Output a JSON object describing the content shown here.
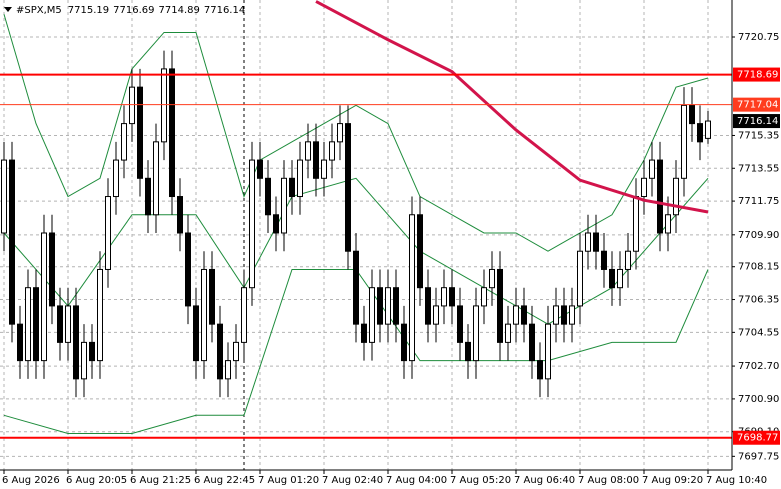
{
  "chart_data": {
    "type": "candlestick",
    "symbol": "#SPX,M5",
    "categories": [
      "6 Aug 2026",
      null,
      null,
      null,
      null,
      null,
      null,
      null,
      "6 Aug 20:05",
      null,
      null,
      null,
      null,
      null,
      null,
      null,
      "6 Aug 21:25",
      null,
      null,
      null,
      null,
      null,
      null,
      null,
      "6 Aug 22:45",
      null,
      null,
      null,
      null,
      null,
      null,
      null,
      "7 Aug 01:20",
      null,
      null,
      null,
      null,
      null,
      null,
      null,
      "7 Aug 02:40",
      null,
      null,
      null,
      null,
      null,
      null,
      null,
      "7 Aug 04:00",
      null,
      null,
      null,
      null,
      null,
      null,
      null,
      "7 Aug 05:20",
      null,
      null,
      null,
      null,
      null,
      null,
      null,
      "7 Aug 06:40",
      null,
      null,
      null,
      null,
      null,
      null,
      null,
      "7 Aug 08:00",
      null,
      null,
      null,
      null,
      null,
      null,
      null,
      "7 Aug 09:20",
      null,
      null,
      null,
      null,
      null,
      null,
      null,
      "7 Aug 10:40"
    ],
    "open": [
      7710,
      7714,
      7705,
      7703,
      7707,
      7703,
      7710,
      7706,
      7704,
      7706,
      7702,
      7704,
      7703,
      7708,
      7712,
      7714,
      7716,
      7718,
      7713,
      7711,
      7715,
      7719,
      7712,
      7710,
      7706,
      7703,
      7708,
      7705,
      7702,
      7703,
      7704,
      7707,
      7714,
      7713,
      7711,
      7710,
      7713,
      7712,
      7714,
      7715,
      7713,
      7714,
      7715,
      7716,
      7709,
      7705,
      7704,
      7707,
      7705,
      7707,
      7705,
      7703,
      7711,
      7707,
      7705,
      7706,
      7707,
      7706,
      7704,
      7703,
      7706,
      7707,
      7708,
      7704,
      7705,
      7706,
      7705,
      7703,
      7702,
      7705,
      7706,
      7705,
      7706,
      7709,
      7710,
      7709,
      7708,
      7707,
      7708,
      7709,
      7712,
      7713,
      7714,
      7710,
      7711,
      7713,
      7717,
      7716,
      7715.19
    ],
    "high": [
      7715,
      7715,
      7706,
      7708,
      7708,
      7711,
      7711,
      7707,
      7707,
      7707,
      7705,
      7705,
      7709,
      7713,
      7715,
      7717,
      7719,
      7719,
      7714,
      7716,
      7720,
      7720,
      7713,
      7711,
      7707,
      7709,
      7709,
      7706,
      7704,
      7705,
      7708,
      7715,
      7715,
      7714,
      7712,
      7714,
      7714,
      7715,
      7716,
      7716,
      7715,
      7716,
      7717,
      7717,
      7710,
      7706,
      7708,
      7708,
      7708,
      7708,
      7706,
      7712,
      7712,
      7708,
      7707,
      7708,
      7708,
      7707,
      7705,
      7707,
      7708,
      7709,
      7709,
      7706,
      7707,
      7707,
      7706,
      7704,
      7706,
      7707,
      7707,
      7707,
      7710,
      7711,
      7711,
      7710,
      7709,
      7709,
      7710,
      7713,
      7714,
      7715,
      7715,
      7712,
      7714,
      7718,
      7718,
      7717,
      7716.69
    ],
    "low": [
      7709,
      7704,
      7702,
      7702,
      7702,
      7702,
      7705,
      7703,
      7703,
      7701,
      7701,
      7702,
      7702,
      7707,
      7711,
      7713,
      7715,
      7712,
      7710,
      7710,
      7714,
      7711,
      7709,
      7705,
      7702,
      7702,
      7704,
      7701,
      7701,
      7702,
      7703,
      7706,
      7712,
      7710,
      7709,
      7709,
      7711,
      7711,
      7713,
      7712,
      7712,
      7713,
      7714,
      7708,
      7704,
      7703,
      7703,
      7704,
      7704,
      7704,
      7702,
      7702,
      7706,
      7704,
      7704,
      7705,
      7705,
      7703,
      7702,
      7702,
      7705,
      7706,
      7703,
      7703,
      7704,
      7704,
      7702,
      7701,
      7701,
      7704,
      7704,
      7704,
      7705,
      7708,
      7708,
      7707,
      7706,
      7706,
      7707,
      7708,
      7711,
      7712,
      7709,
      7709,
      7710,
      7712,
      7715,
      7714,
      7714.89
    ],
    "close": [
      7714,
      7705,
      7703,
      7707,
      7703,
      7710,
      7706,
      7704,
      7706,
      7702,
      7704,
      7703,
      7708,
      7712,
      7714,
      7716,
      7718,
      7713,
      7711,
      7715,
      7719,
      7712,
      7710,
      7706,
      7703,
      7708,
      7705,
      7702,
      7703,
      7704,
      7707,
      7714,
      7713,
      7711,
      7710,
      7713,
      7712,
      7714,
      7715,
      7713,
      7714,
      7715,
      7716,
      7709,
      7705,
      7704,
      7707,
      7705,
      7707,
      7705,
      7703,
      7711,
      7707,
      7705,
      7706,
      7707,
      7706,
      7704,
      7703,
      7706,
      7707,
      7708,
      7704,
      7705,
      7706,
      7705,
      7703,
      7702,
      7705,
      7706,
      7705,
      7706,
      7709,
      7710,
      7709,
      7708,
      7707,
      7708,
      7709,
      7712,
      7713,
      7714,
      7710,
      7711,
      7713,
      7717,
      7716,
      7715,
      7716.14
    ],
    "ma": {
      "color": "#d2144b",
      "x": [
        39,
        48,
        56,
        64,
        72,
        80,
        88
      ],
      "values": [
        7722.7,
        7720.6,
        7718.85,
        7715.65,
        7712.9,
        7711.8,
        7711.15
      ]
    },
    "bands": [
      {
        "color": "#1e8c3c",
        "x": [
          0,
          4,
          8,
          12,
          16,
          20,
          24,
          28,
          30,
          32,
          36,
          40,
          44,
          48,
          52,
          56,
          60,
          64,
          68,
          72,
          76,
          80,
          84,
          88
        ],
        "values": [
          7722,
          7716,
          7712,
          7713,
          7719,
          7721,
          7721,
          7715,
          7712,
          7714,
          7715,
          7716,
          7717,
          7716,
          7712,
          7711,
          7710,
          7710,
          7709,
          7710,
          7711,
          7714,
          7718,
          7718.5
        ]
      },
      {
        "color": "#1e8c3c",
        "x": [
          0,
          8,
          16,
          24,
          30,
          36,
          44,
          52,
          60,
          68,
          76,
          84,
          88
        ],
        "values": [
          7710,
          7706,
          7711,
          7711,
          7707,
          7712,
          7713,
          7709,
          7707,
          7705,
          7707,
          7711,
          7713
        ]
      },
      {
        "color": "#1e8c3c",
        "x": [
          0,
          8,
          16,
          24,
          30,
          36,
          44,
          52,
          60,
          68,
          76,
          84,
          88
        ],
        "values": [
          7700,
          7699,
          7699,
          7700,
          7700,
          7708,
          7708,
          7703,
          7703,
          7703,
          7704,
          7704,
          7708
        ]
      }
    ],
    "levels": [
      {
        "value": 7718.69,
        "color": "#ff0000"
      },
      {
        "value": 7717.04,
        "color": "#ff3c1e"
      },
      {
        "value": 7698.77,
        "color": "#ff0000"
      }
    ],
    "ylim": [
      7697.0,
      7722.78
    ],
    "yticks": [
      7720.75,
      7715.35,
      7713.55,
      7711.75,
      {
        "value": 7709.9,
        "label": "7709.90"
      },
      7708.15,
      7706.35,
      7704.55,
      {
        "value": 7702.7,
        "label": "7702.70"
      },
      {
        "value": 7700.9,
        "label": "7700.90"
      },
      {
        "value": 7699.1,
        "label": "7699.10"
      },
      7697.75
    ],
    "grid": true
  }
}
